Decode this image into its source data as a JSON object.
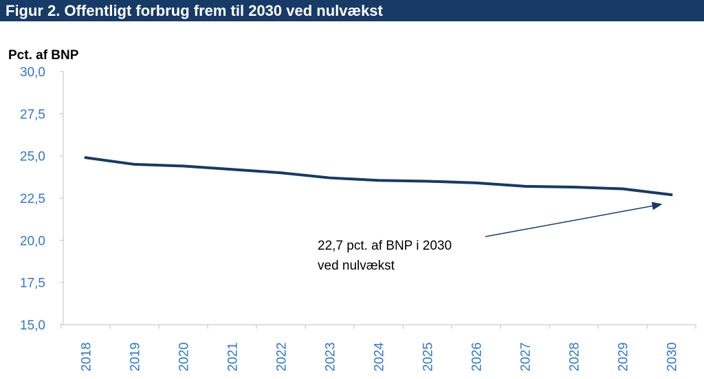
{
  "chart_data": {
    "type": "line",
    "title": "Figur 2. Offentligt forbrug frem til 2030 ved nulvækst",
    "ylabel": "Pct. af BNP",
    "xlabel": "",
    "categories": [
      "2018",
      "2019",
      "2020",
      "2021",
      "2022",
      "2023",
      "2024",
      "2025",
      "2026",
      "2027",
      "2028",
      "2029",
      "2030"
    ],
    "series": [
      {
        "name": "Offentligt forbrug",
        "values": [
          24.9,
          24.5,
          24.4,
          24.2,
          24.0,
          23.7,
          23.55,
          23.5,
          23.4,
          23.2,
          23.15,
          23.05,
          22.7
        ],
        "color": "#173a66"
      }
    ],
    "ylim": [
      15.0,
      30.0
    ],
    "yticks": [
      "15,0",
      "17,5",
      "20,0",
      "22,5",
      "25,0",
      "27,5",
      "30,0"
    ],
    "grid": false,
    "annotation": {
      "line1": "22,7 pct. af BNP i 2030",
      "line2": "ved nulvækst"
    },
    "tick_color": "#2e75d6"
  }
}
